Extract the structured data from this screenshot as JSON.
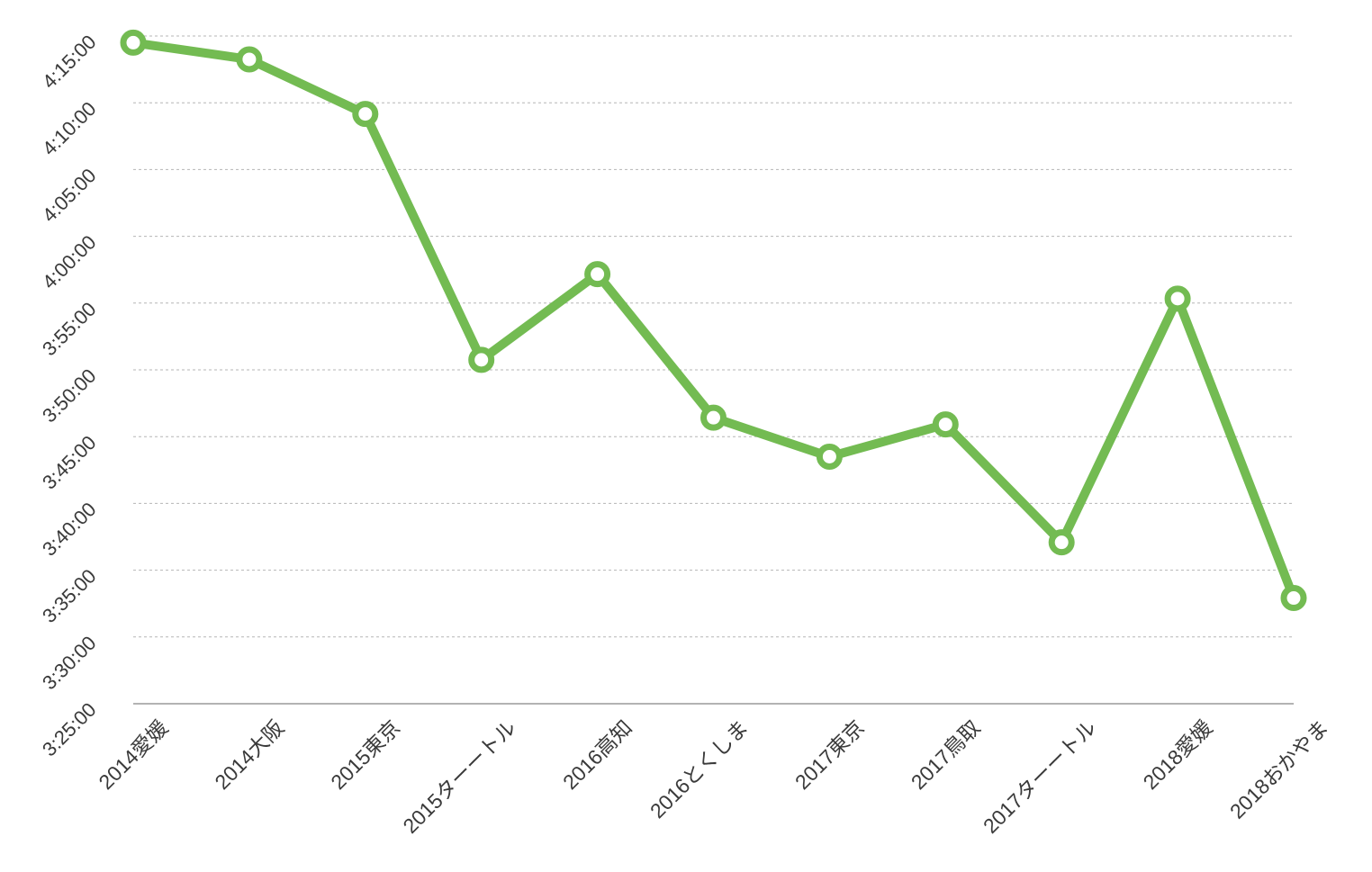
{
  "chart_data": {
    "type": "line",
    "title": "",
    "xlabel": "",
    "ylabel": "",
    "categories": [
      "2014愛媛",
      "2014大阪",
      "2015東京",
      "2015ターートル",
      "2016高知",
      "2016とくしま",
      "2017東京",
      "2017鳥取",
      "2017ターートル",
      "2018愛媛",
      "2018おかやま"
    ],
    "y_tick_labels": [
      "3:25:00",
      "3:30:00",
      "3:35:00",
      "3:40:00",
      "3:45:00",
      "3:50:00",
      "3:55:00",
      "4:00:00",
      "4:05:00",
      "4:10:00",
      "4:15:00"
    ],
    "y_unit": "seconds",
    "ylim": [
      12300,
      15300
    ],
    "series": [
      {
        "values": [
          15270,
          15195,
          14950,
          13845,
          14230,
          13585,
          13410,
          13555,
          13025,
          14120,
          12775
        ]
      }
    ],
    "grid": true,
    "legend": "none",
    "colors": {
      "line": "#73bb52",
      "marker_fill": "#ffffff",
      "grid": "#b5b5b5",
      "axis": "#9a9a9a"
    }
  }
}
